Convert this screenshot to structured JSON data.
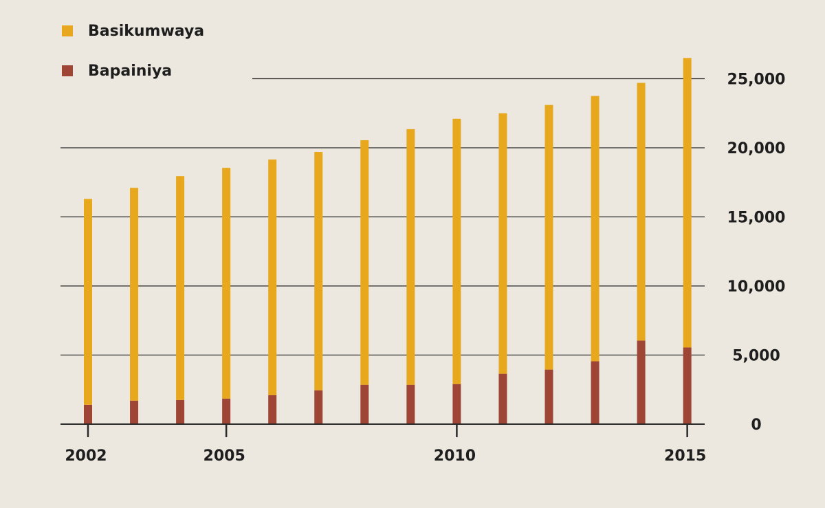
{
  "chart_data": {
    "type": "bar",
    "stacked": true,
    "categories": [
      "2002",
      "2003",
      "2004",
      "2005",
      "2006",
      "2007",
      "2008",
      "2009",
      "2010",
      "2011",
      "2012",
      "2013",
      "2014",
      "2015"
    ],
    "x_tick_labels": [
      "2002",
      "2005",
      "2010",
      "2015"
    ],
    "series": [
      {
        "name": "Bapainiya",
        "color": "#9e4536",
        "values": [
          1400,
          1700,
          1750,
          1850,
          2100,
          2450,
          2850,
          2850,
          2900,
          3650,
          3950,
          4550,
          6050,
          5550
        ]
      },
      {
        "name": "Basikumwaya",
        "color": "#e8a81d",
        "values": [
          14900,
          15400,
          16200,
          16700,
          17050,
          17250,
          17700,
          18500,
          19200,
          18850,
          19150,
          19200,
          18650,
          20950
        ]
      }
    ],
    "ylim": [
      0,
      27000
    ],
    "y_ticks": [
      0,
      5000,
      10000,
      15000,
      20000,
      25000
    ],
    "y_tick_labels": [
      "0",
      "5,000",
      "10,000",
      "15,000",
      "20,000",
      "25,000"
    ],
    "y_axis_side": "right",
    "grid": true,
    "legend": {
      "position": "top-left",
      "order": [
        "Basikumwaya",
        "Bapainiya"
      ]
    }
  },
  "colors": {
    "background": "#ece8df",
    "grid": "#2a2a2a",
    "text": "#1e1e1e"
  }
}
